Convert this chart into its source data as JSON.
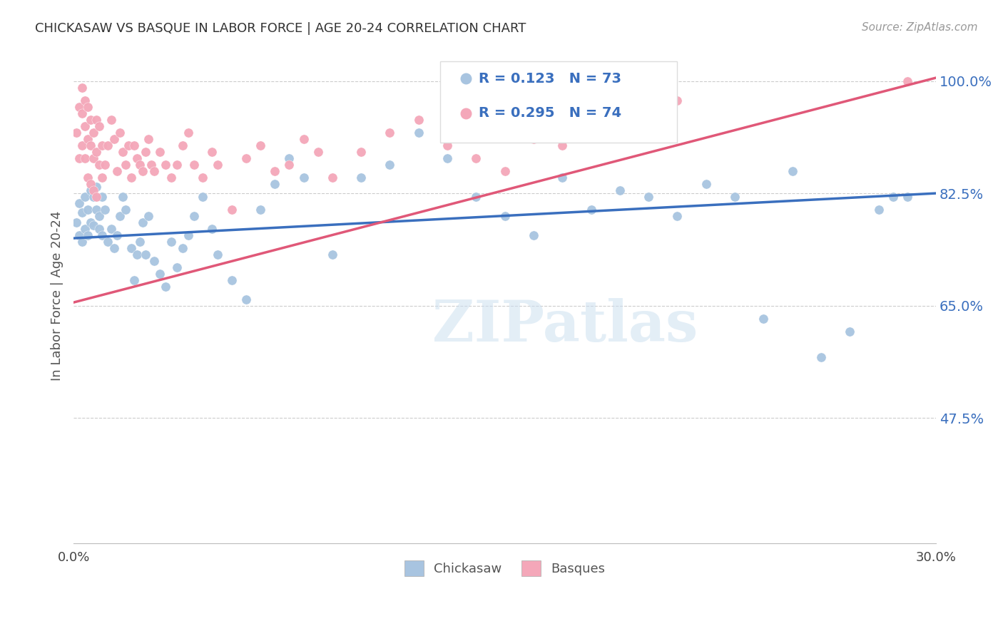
{
  "title": "CHICKASAW VS BASQUE IN LABOR FORCE | AGE 20-24 CORRELATION CHART",
  "source": "Source: ZipAtlas.com",
  "ylabel": "In Labor Force | Age 20-24",
  "xlim": [
    0.0,
    0.3
  ],
  "ylim": [
    0.28,
    1.05
  ],
  "yticks": [
    0.475,
    0.65,
    0.825,
    1.0
  ],
  "ytick_labels": [
    "47.5%",
    "65.0%",
    "82.5%",
    "100.0%"
  ],
  "xticks": [
    0.0,
    0.3
  ],
  "xtick_labels": [
    "0.0%",
    "30.0%"
  ],
  "chickasaw_color": "#a8c4e0",
  "basque_color": "#f4a7b9",
  "chickasaw_line_color": "#3a6fbe",
  "basque_line_color": "#e05878",
  "legend_text_color": "#3a6fbe",
  "R_chickasaw": 0.123,
  "N_chickasaw": 73,
  "R_basque": 0.295,
  "N_basque": 74,
  "watermark": "ZIPatlas",
  "chickasaw_x": [
    0.001,
    0.002,
    0.002,
    0.003,
    0.003,
    0.004,
    0.004,
    0.005,
    0.005,
    0.006,
    0.006,
    0.007,
    0.007,
    0.008,
    0.008,
    0.009,
    0.009,
    0.01,
    0.01,
    0.011,
    0.012,
    0.013,
    0.014,
    0.015,
    0.016,
    0.017,
    0.018,
    0.02,
    0.021,
    0.022,
    0.023,
    0.024,
    0.025,
    0.026,
    0.028,
    0.03,
    0.032,
    0.034,
    0.036,
    0.038,
    0.04,
    0.042,
    0.045,
    0.048,
    0.05,
    0.055,
    0.06,
    0.065,
    0.07,
    0.075,
    0.08,
    0.09,
    0.1,
    0.11,
    0.12,
    0.13,
    0.14,
    0.15,
    0.16,
    0.17,
    0.18,
    0.19,
    0.2,
    0.21,
    0.22,
    0.23,
    0.24,
    0.25,
    0.26,
    0.27,
    0.28,
    0.285,
    0.29
  ],
  "chickasaw_y": [
    0.78,
    0.81,
    0.76,
    0.795,
    0.75,
    0.82,
    0.77,
    0.8,
    0.76,
    0.83,
    0.78,
    0.82,
    0.775,
    0.8,
    0.835,
    0.79,
    0.77,
    0.76,
    0.82,
    0.8,
    0.75,
    0.77,
    0.74,
    0.76,
    0.79,
    0.82,
    0.8,
    0.74,
    0.69,
    0.73,
    0.75,
    0.78,
    0.73,
    0.79,
    0.72,
    0.7,
    0.68,
    0.75,
    0.71,
    0.74,
    0.76,
    0.79,
    0.82,
    0.77,
    0.73,
    0.69,
    0.66,
    0.8,
    0.84,
    0.88,
    0.85,
    0.73,
    0.85,
    0.87,
    0.92,
    0.88,
    0.82,
    0.79,
    0.76,
    0.85,
    0.8,
    0.83,
    0.82,
    0.79,
    0.84,
    0.82,
    0.63,
    0.86,
    0.57,
    0.61,
    0.8,
    0.82,
    0.82
  ],
  "basque_x": [
    0.001,
    0.002,
    0.002,
    0.003,
    0.003,
    0.003,
    0.004,
    0.004,
    0.004,
    0.005,
    0.005,
    0.005,
    0.006,
    0.006,
    0.006,
    0.007,
    0.007,
    0.007,
    0.008,
    0.008,
    0.008,
    0.009,
    0.009,
    0.01,
    0.01,
    0.011,
    0.012,
    0.013,
    0.014,
    0.015,
    0.016,
    0.017,
    0.018,
    0.019,
    0.02,
    0.021,
    0.022,
    0.023,
    0.024,
    0.025,
    0.026,
    0.027,
    0.028,
    0.03,
    0.032,
    0.034,
    0.036,
    0.038,
    0.04,
    0.042,
    0.045,
    0.048,
    0.05,
    0.055,
    0.06,
    0.065,
    0.07,
    0.075,
    0.08,
    0.085,
    0.09,
    0.1,
    0.11,
    0.12,
    0.13,
    0.14,
    0.15,
    0.16,
    0.17,
    0.18,
    0.19,
    0.2,
    0.21,
    0.29
  ],
  "basque_y": [
    0.92,
    0.96,
    0.88,
    0.99,
    0.95,
    0.9,
    0.97,
    0.93,
    0.88,
    0.96,
    0.91,
    0.85,
    0.94,
    0.9,
    0.84,
    0.92,
    0.88,
    0.83,
    0.94,
    0.89,
    0.82,
    0.93,
    0.87,
    0.9,
    0.85,
    0.87,
    0.9,
    0.94,
    0.91,
    0.86,
    0.92,
    0.89,
    0.87,
    0.9,
    0.85,
    0.9,
    0.88,
    0.87,
    0.86,
    0.89,
    0.91,
    0.87,
    0.86,
    0.89,
    0.87,
    0.85,
    0.87,
    0.9,
    0.92,
    0.87,
    0.85,
    0.89,
    0.87,
    0.8,
    0.88,
    0.9,
    0.86,
    0.87,
    0.91,
    0.89,
    0.85,
    0.89,
    0.92,
    0.94,
    0.9,
    0.88,
    0.86,
    0.91,
    0.9,
    0.93,
    0.96,
    0.96,
    0.97,
    1.0
  ],
  "trendline_chickasaw_x0": 0.0,
  "trendline_chickasaw_y0": 0.755,
  "trendline_chickasaw_x1": 0.3,
  "trendline_chickasaw_y1": 0.825,
  "trendline_basque_x0": 0.0,
  "trendline_basque_y0": 0.655,
  "trendline_basque_x1": 0.3,
  "trendline_basque_y1": 1.005
}
